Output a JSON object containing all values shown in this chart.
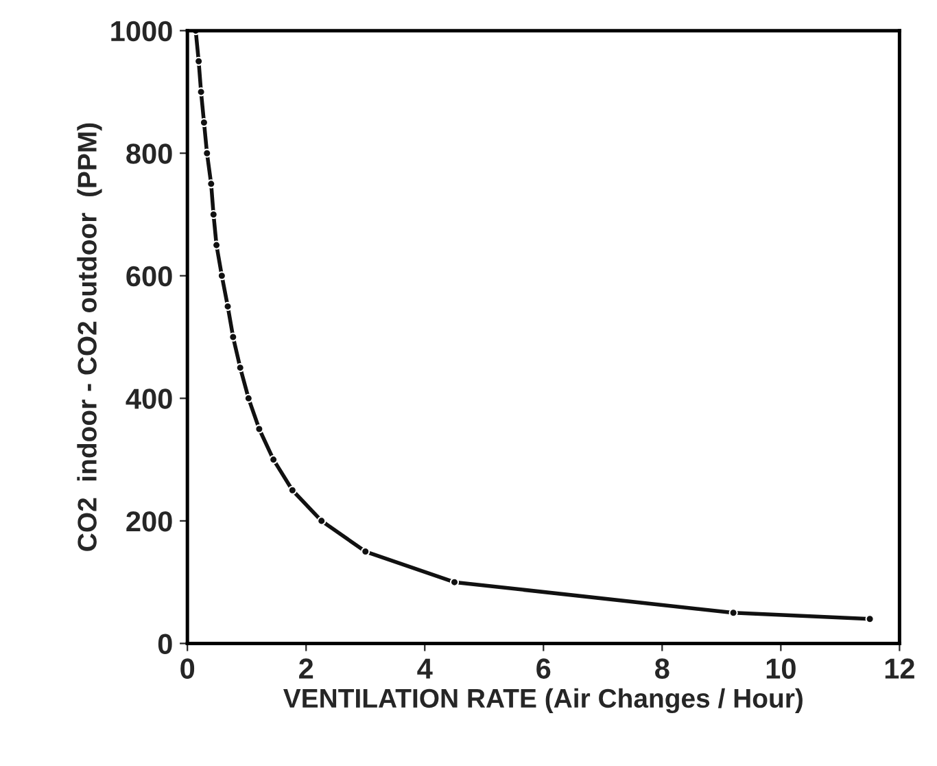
{
  "chart_data": {
    "type": "line",
    "xlabel": "VENTILATION RATE (Air Changes / Hour)",
    "ylabel": "CO2  indoor - CO2 outdoor  (PPM)",
    "xlim": [
      0,
      12
    ],
    "ylim": [
      0,
      1000
    ],
    "xticks": [
      0,
      2,
      4,
      6,
      8,
      10,
      12
    ],
    "yticks": [
      0,
      200,
      400,
      600,
      800,
      1000
    ],
    "grid": false,
    "marker": "circle",
    "line_style": "solid",
    "series": [
      {
        "color": "#111111",
        "x": [
          0.14,
          0.19,
          0.23,
          0.28,
          0.33,
          0.4,
          0.44,
          0.49,
          0.58,
          0.68,
          0.77,
          0.89,
          1.03,
          1.21,
          1.45,
          1.77,
          2.26,
          3.0,
          4.5,
          9.2,
          11.5
        ],
        "values": [
          1000,
          950,
          900,
          850,
          800,
          750,
          700,
          650,
          600,
          550,
          500,
          450,
          400,
          350,
          300,
          250,
          200,
          150,
          100,
          50,
          40
        ]
      }
    ]
  }
}
